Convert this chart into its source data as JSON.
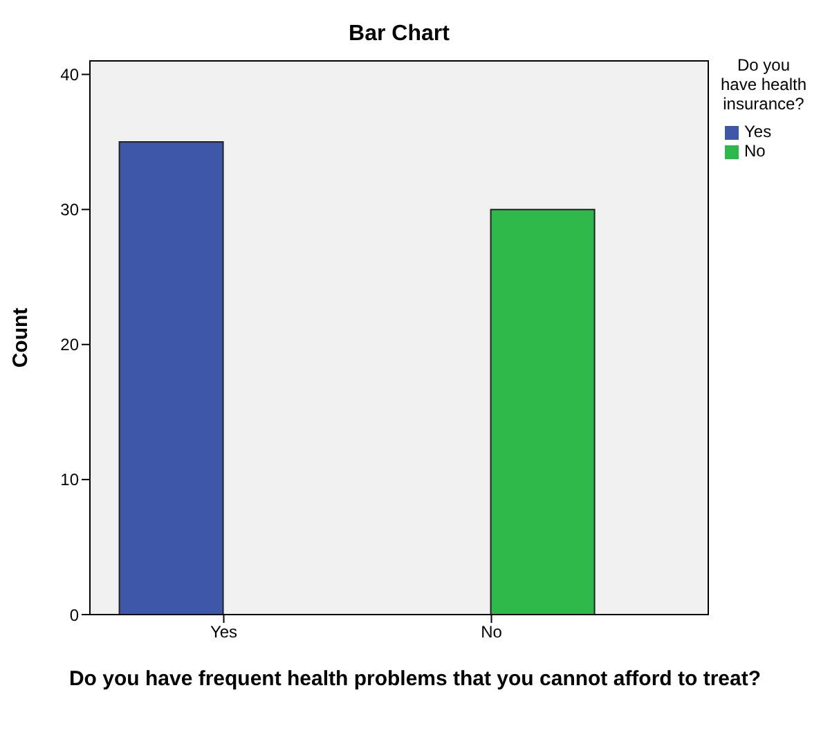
{
  "chart_data": {
    "type": "bar",
    "title": "Bar Chart",
    "xlabel": "Do you have frequent health problems that you cannot afford to treat?",
    "ylabel": "Count",
    "legend_title": "Do you have health insurance?",
    "categories": [
      "Yes",
      "No"
    ],
    "series": [
      {
        "name": "Yes",
        "color": "#3f57a8",
        "values": [
          35,
          null
        ]
      },
      {
        "name": "No",
        "color": "#2db84a",
        "values": [
          null,
          30
        ]
      }
    ],
    "ylim": [
      0,
      41
    ],
    "yticks": [
      0,
      10,
      20,
      30,
      40
    ],
    "legend": "top right"
  }
}
